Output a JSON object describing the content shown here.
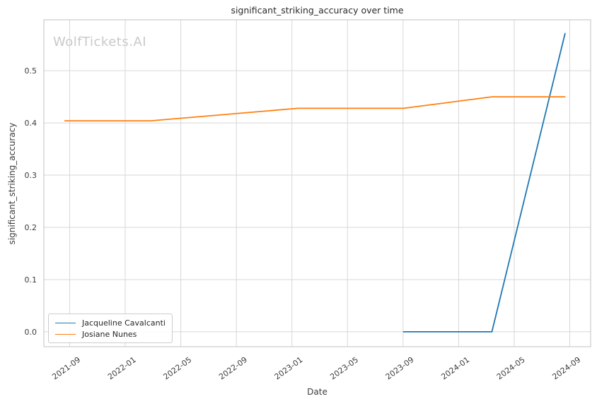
{
  "chart_data": {
    "type": "line",
    "title": "significant_striking_accuracy over time",
    "xlabel": "Date",
    "ylabel": "significant_striking_accuracy",
    "watermark": "WolfTickets.AI",
    "grid": true,
    "legend_position": "lower left",
    "x_tick_labels": [
      "2021-09",
      "2022-01",
      "2022-05",
      "2022-09",
      "2023-01",
      "2023-05",
      "2023-09",
      "2024-01",
      "2024-05",
      "2024-09"
    ],
    "x_tick_rotation_deg": 36,
    "y_ticks": [
      "0.0",
      "0.1",
      "0.2",
      "0.3",
      "0.4",
      "0.5"
    ],
    "ylim": [
      -0.0285,
      0.5975
    ],
    "xlim_months_from_first_tick": [
      -1.857,
      37.5
    ],
    "grid_color": "#d7d7d7",
    "spine_color": "#cccccc",
    "series": [
      {
        "name": "Jacqueline Cavalcanti",
        "color": "#1f77b4",
        "points": [
          [
            "2023-09-02",
            0.0
          ],
          [
            "2024-03-13",
            0.0
          ],
          [
            "2024-08-21",
            0.571
          ]
        ]
      },
      {
        "name": "Josiane Nunes",
        "color": "#ff7f0e",
        "points": [
          [
            "2021-08-21",
            0.404
          ],
          [
            "2022-02-26",
            0.404
          ],
          [
            "2023-01-14",
            0.428
          ],
          [
            "2023-09-02",
            0.428
          ],
          [
            "2024-03-13",
            0.45
          ],
          [
            "2024-08-21",
            0.45
          ]
        ]
      }
    ]
  }
}
